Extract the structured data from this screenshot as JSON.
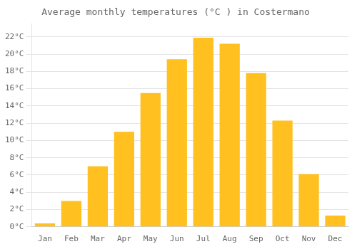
{
  "chart_data": {
    "type": "bar",
    "title": "Average monthly temperatures (°C ) in Costermano",
    "categories": [
      "Jan",
      "Feb",
      "Mar",
      "Apr",
      "May",
      "Jun",
      "Jul",
      "Aug",
      "Sep",
      "Oct",
      "Nov",
      "Dec"
    ],
    "values": [
      0.4,
      3.0,
      7.0,
      11.0,
      15.5,
      19.4,
      21.9,
      21.2,
      17.8,
      12.3,
      6.1,
      1.3
    ],
    "color": "#FFC020",
    "ylim": [
      0,
      23.5
    ],
    "yticks": [
      {
        "value": 0,
        "label": "0°C"
      },
      {
        "value": 2,
        "label": "2°C"
      },
      {
        "value": 4,
        "label": "4°C"
      },
      {
        "value": 6,
        "label": "6°C"
      },
      {
        "value": 8,
        "label": "8°C"
      },
      {
        "value": 10,
        "label": "10°C"
      },
      {
        "value": 12,
        "label": "12°C"
      },
      {
        "value": 14,
        "label": "14°C"
      },
      {
        "value": 16,
        "label": "16°C"
      },
      {
        "value": 18,
        "label": "18°C"
      },
      {
        "value": 20,
        "label": "20°C"
      },
      {
        "value": 22,
        "label": "22°C"
      }
    ],
    "grid": true
  }
}
